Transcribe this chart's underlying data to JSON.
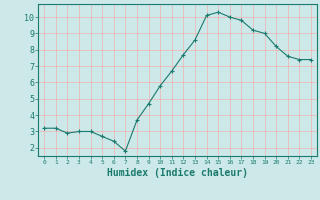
{
  "x": [
    0,
    1,
    2,
    3,
    4,
    5,
    6,
    7,
    8,
    9,
    10,
    11,
    12,
    13,
    14,
    15,
    16,
    17,
    18,
    19,
    20,
    21,
    22,
    23
  ],
  "y": [
    3.2,
    3.2,
    2.9,
    3.0,
    3.0,
    2.7,
    2.4,
    1.8,
    3.7,
    4.7,
    5.8,
    6.7,
    7.7,
    8.6,
    10.1,
    10.3,
    10.0,
    9.8,
    9.2,
    9.0,
    8.2,
    7.6,
    7.4,
    7.4
  ],
  "line_color": "#1a7a6e",
  "marker": "+",
  "marker_size": 3,
  "bg_color": "#cce8e8",
  "grid_color": "#f0b0b0",
  "xlabel": "Humidex (Indice chaleur)",
  "xlim": [
    -0.5,
    23.5
  ],
  "ylim": [
    1.5,
    10.8
  ],
  "yticks": [
    2,
    3,
    4,
    5,
    6,
    7,
    8,
    9,
    10
  ],
  "xticks": [
    0,
    1,
    2,
    3,
    4,
    5,
    6,
    7,
    8,
    9,
    10,
    11,
    12,
    13,
    14,
    15,
    16,
    17,
    18,
    19,
    20,
    21,
    22,
    23
  ],
  "tick_color": "#1a7a6e",
  "label_fontsize": 7,
  "tick_fontsize": 6,
  "axis_color": "#1a7a6e"
}
